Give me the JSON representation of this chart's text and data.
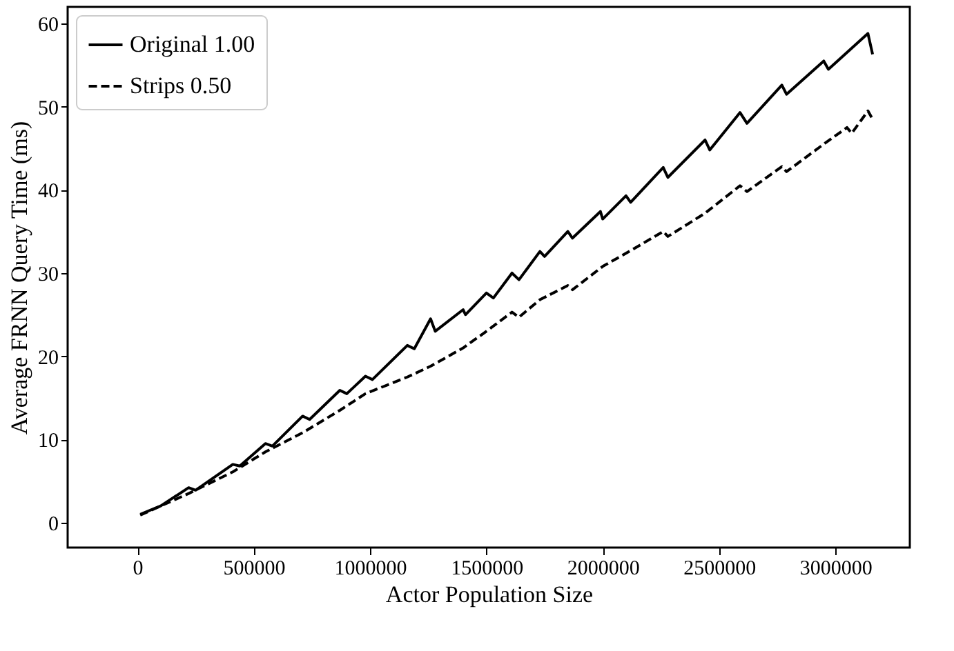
{
  "chart_data": {
    "type": "line",
    "xlabel": "Actor Population Size",
    "ylabel": "Average FRNN Query Time (ms)",
    "xlim": [
      -300000,
      3320000
    ],
    "xticks": [
      0,
      500000,
      1000000,
      1500000,
      2000000,
      2500000,
      3000000
    ],
    "ylim": [
      -3,
      62
    ],
    "yticks": [
      0,
      10,
      20,
      30,
      40,
      50,
      60
    ],
    "grid": false,
    "legend": "top left",
    "marker": "none",
    "series": [
      {
        "name": "Original 1.00",
        "color": "#000000",
        "line_style": "solid",
        "x": [
          12000,
          100000,
          220000,
          250000,
          410000,
          440000,
          550000,
          580000,
          710000,
          740000,
          870000,
          900000,
          980000,
          1010000,
          1160000,
          1190000,
          1260000,
          1280000,
          1400000,
          1410000,
          1500000,
          1530000,
          1610000,
          1640000,
          1730000,
          1750000,
          1850000,
          1870000,
          1990000,
          2000000,
          2100000,
          2120000,
          2260000,
          2280000,
          2440000,
          2460000,
          2590000,
          2620000,
          2770000,
          2790000,
          2950000,
          2970000,
          3140000,
          3160000
        ],
        "values": [
          1.0,
          2.0,
          4.2,
          3.9,
          7.0,
          6.8,
          9.5,
          9.2,
          12.8,
          12.4,
          15.9,
          15.5,
          17.6,
          17.2,
          21.3,
          20.9,
          24.5,
          23.0,
          25.6,
          25.0,
          27.6,
          27.0,
          30.0,
          29.2,
          32.6,
          32.0,
          35.0,
          34.2,
          37.4,
          36.5,
          39.3,
          38.5,
          42.7,
          41.5,
          46.0,
          44.8,
          49.3,
          48.0,
          52.6,
          51.5,
          55.5,
          54.5,
          58.8,
          56.3
        ]
      },
      {
        "name": "Strips 0.50",
        "color": "#000000",
        "line_style": "dashed",
        "x": [
          12000,
          220000,
          410000,
          550000,
          710000,
          870000,
          980000,
          1160000,
          1260000,
          1400000,
          1500000,
          1610000,
          1640000,
          1730000,
          1850000,
          1870000,
          2000000,
          2120000,
          2260000,
          2280000,
          2440000,
          2590000,
          2620000,
          2770000,
          2790000,
          2950000,
          3050000,
          3070000,
          3140000,
          3160000
        ],
        "values": [
          0.9,
          3.5,
          6.1,
          8.5,
          10.8,
          13.5,
          15.5,
          17.5,
          18.8,
          21.0,
          23.0,
          25.3,
          24.7,
          26.8,
          28.5,
          28.0,
          30.8,
          32.7,
          35.0,
          34.4,
          37.2,
          40.5,
          39.8,
          42.8,
          42.2,
          45.5,
          47.5,
          46.8,
          49.5,
          48.5
        ]
      }
    ]
  }
}
